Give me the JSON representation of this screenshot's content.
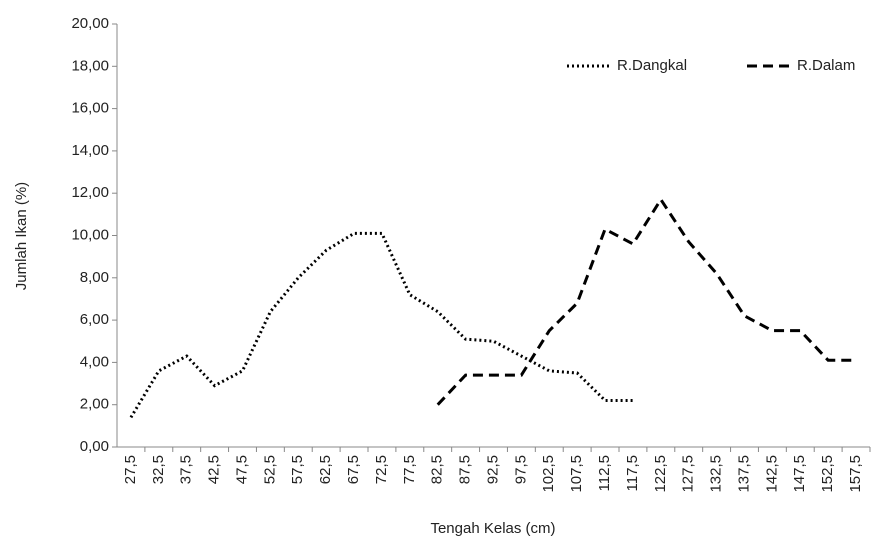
{
  "chart_data": {
    "type": "line",
    "x_label": "Tengah Kelas (cm)",
    "y_label": "Jumlah Ikan (%)",
    "categories": [
      "27,5",
      "32,5",
      "37,5",
      "42,5",
      "47,5",
      "52,5",
      "57,5",
      "62,5",
      "67,5",
      "72,5",
      "77,5",
      "82,5",
      "87,5",
      "92,5",
      "97,5",
      "102,5",
      "107,5",
      "112,5",
      "117,5",
      "122,5",
      "127,5",
      "132,5",
      "137,5",
      "142,5",
      "147,5",
      "152,5",
      "157,5"
    ],
    "series": [
      {
        "name": "R.Dangkal",
        "color": "#000000",
        "dash": "dotted",
        "values": [
          1.4,
          3.6,
          4.3,
          2.9,
          3.6,
          6.4,
          8.0,
          9.3,
          10.1,
          10.1,
          7.2,
          6.4,
          5.1,
          5.0,
          4.3,
          3.6,
          3.5,
          2.2,
          2.2,
          null,
          null,
          null,
          null,
          null,
          null,
          null,
          null
        ]
      },
      {
        "name": "R.Dalam",
        "color": "#000000",
        "dash": "dashed",
        "values": [
          null,
          null,
          null,
          null,
          null,
          null,
          null,
          null,
          null,
          null,
          null,
          2.0,
          3.4,
          3.4,
          3.4,
          5.5,
          6.8,
          10.3,
          9.6,
          11.7,
          9.7,
          8.2,
          6.2,
          5.5,
          5.5,
          4.1,
          4.1
        ]
      }
    ],
    "ylim": [
      0,
      20
    ],
    "yticks": [
      {
        "value": 0,
        "label": "0,00"
      },
      {
        "value": 2,
        "label": "2,00"
      },
      {
        "value": 4,
        "label": "4,00"
      },
      {
        "value": 6,
        "label": "6,00"
      },
      {
        "value": 8,
        "label": "8,00"
      },
      {
        "value": 10,
        "label": "10,00"
      },
      {
        "value": 12,
        "label": "12,00"
      },
      {
        "value": 14,
        "label": "14,00"
      },
      {
        "value": 16,
        "label": "16,00"
      },
      {
        "value": 18,
        "label": "18,00"
      },
      {
        "value": 20,
        "label": "20,00"
      }
    ],
    "legend": "top-right",
    "grid": false
  }
}
